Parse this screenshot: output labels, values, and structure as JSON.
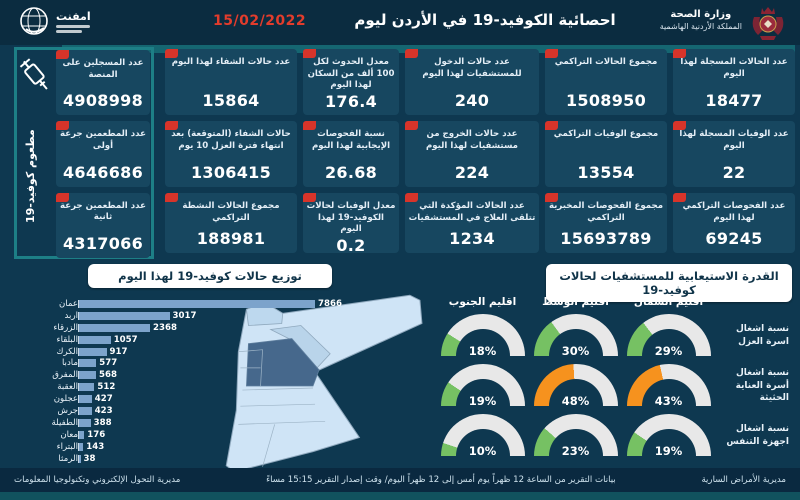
{
  "header": {
    "title": "احصائية الكوفيد-19 في الأردن ليوم",
    "date": "15/02/2022",
    "org_name": "امفنت",
    "ministry_name": "وزارة الصحة",
    "ministry_sub": "المملكة الأردنية الهاشمية"
  },
  "sidebar": {
    "vaccine_label": "مطعوم كوفيد-19",
    "cards": [
      {
        "label": "عدد المسجلين على المنصة",
        "value": "4908998"
      },
      {
        "label": "عدد المطعمين جرعة أولى",
        "value": "4646686"
      },
      {
        "label": "عدد المطعمين جرعة ثانية",
        "value": "4317066"
      }
    ]
  },
  "stats_columns": [
    {
      "cards": [
        {
          "label": "عدد الحالات المسجلة لهذا اليوم",
          "value": "18477"
        },
        {
          "label": "عدد الوفيات المسجلة لهذا اليوم",
          "value": "22"
        },
        {
          "label": "عدد الفحوصات التراكمي لهذا اليوم",
          "value": "69245"
        }
      ]
    },
    {
      "cards": [
        {
          "label": "مجموع الحالات التراكمي",
          "value": "1508950"
        },
        {
          "label": "مجموع الوفيات التراكمي",
          "value": "13554"
        },
        {
          "label": "مجموع الفحوصات المخبرية التراكمي",
          "value": "15693789"
        }
      ]
    },
    {
      "cards": [
        {
          "label": "عدد حالات الدخول للمستشفيات لهذا اليوم",
          "value": "240"
        },
        {
          "label": "عدد حالات الخروج من مستشفيات لهذا اليوم",
          "value": "224"
        },
        {
          "label": "عدد الحالات المؤكدة التي تتلقى العلاج في المستشفيات",
          "value": "1234"
        }
      ]
    },
    {
      "cards": [
        {
          "label": "معدل الحدوث لكل 100 ألف من السكان لهذا اليوم",
          "value": "176.4"
        },
        {
          "label": "نسبة الفحوصات الإيجابية لهذا اليوم",
          "value": "26.68"
        },
        {
          "label": "معدل الوفيات لحالات الكوفيد-19 لهذا اليوم",
          "value": "0.2"
        }
      ]
    },
    {
      "cards": [
        {
          "label": "عدد حالات الشفاء لهذا اليوم",
          "value": "15864"
        },
        {
          "label": "حالات الشفاء (المتوقعة) بعد انتهاء فترة العزل 10 يوم",
          "value": "1306415"
        },
        {
          "label": "مجموع الحالات النشطة التراكمي",
          "value": "188981"
        }
      ]
    }
  ],
  "chart_data": [
    {
      "type": "bar",
      "orientation": "horizontal",
      "title": "توزيع حالات كوفيد-19 لهذا اليوم",
      "categories": [
        "عمان",
        "اربد",
        "الزرقاء",
        "البلقاء",
        "الكرك",
        "مادبا",
        "المفرق",
        "العقبة",
        "عجلون",
        "جرش",
        "الطفيلة",
        "معان",
        "البتراء",
        "الرمثا"
      ],
      "values": [
        7866,
        3017,
        2368,
        1057,
        917,
        577,
        568,
        512,
        427,
        423,
        388,
        176,
        143,
        38
      ],
      "xlim": [
        0,
        8000
      ],
      "bar_color": "#7ca3cb"
    },
    {
      "type": "gauge-grid",
      "title": "القدرة الاستيعابية للمستشفيات لحالات كوفيد-19",
      "columns": [
        "اقليم الشمال",
        "اقليم الوسط",
        "اقليم الجنوب"
      ],
      "rows": [
        {
          "label": "نسبة اشغال اسرة العزل",
          "values": [
            29,
            30,
            18
          ],
          "colors": [
            "green",
            "green",
            "green"
          ]
        },
        {
          "label": "نسبة اشغال أسرة العناية الحثيثة",
          "values": [
            43,
            48,
            19
          ],
          "colors": [
            "orange",
            "orange",
            "green"
          ]
        },
        {
          "label": "نسبة اشغال اجهزة التنفس",
          "values": [
            19,
            23,
            10
          ],
          "colors": [
            "green",
            "green",
            "green"
          ]
        }
      ],
      "color_map": {
        "green": "#76c163",
        "orange": "#f6921e",
        "track": "#e8e8e8"
      }
    }
  ],
  "footer": {
    "right": "مديرية الأمراض السارية",
    "center": "بيانات التقرير من الساعة 12 ظهراً يوم أمس إلى 12 ظهراً اليوم/ وقت إصدار التقرير 15:15 مساءً",
    "left": "مديرية التحول الإلكتروني وتكنولوجيا المعلومات"
  }
}
